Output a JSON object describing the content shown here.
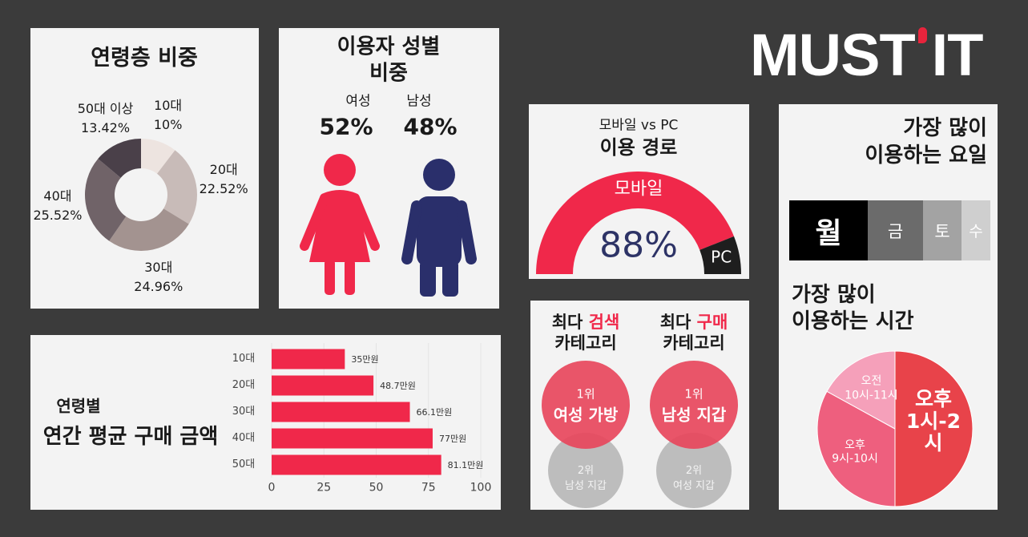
{
  "logo": {
    "left": "MUST",
    "right": "IT"
  },
  "gender": {
    "title": "이용자 성별 비중",
    "groups": [
      {
        "label": "여성",
        "share": "52%"
      },
      {
        "label": "남성",
        "share": "48%"
      }
    ]
  },
  "top_categories": {
    "columns": [
      {
        "heading": {
          "prefix": "최다",
          "keyword": "검색",
          "suffix": "카테고리"
        },
        "first": {
          "rank": "1위",
          "item": "여성 가방"
        },
        "second": {
          "rank": "2위",
          "item": "남성 지갑"
        }
      },
      {
        "heading": {
          "prefix": "최다",
          "keyword": "구매",
          "suffix": "카테고리"
        },
        "first": {
          "rank": "1위",
          "item": "남성 지갑"
        },
        "second": {
          "rank": "2위",
          "item": "여성 지갑"
        }
      }
    ]
  },
  "weekday": {
    "title": "가장 많이\n이용하는 요일",
    "days": [
      "월",
      "금",
      "토",
      "수"
    ]
  },
  "chart_data": [
    {
      "type": "donut",
      "title": "연령층 비중",
      "categories": [
        "10대",
        "20대",
        "30대",
        "40대",
        "50대 이상"
      ],
      "values": [
        10,
        22.52,
        24.96,
        25.52,
        13.42
      ],
      "value_labels": [
        "10%",
        "22.52%",
        "24.96%",
        "25.52%",
        "13.42%"
      ],
      "colors": [
        "#ede4e0",
        "#c8bbb8",
        "#a39390",
        "#706368",
        "#4a4049"
      ]
    },
    {
      "type": "gauge",
      "subtitle": "모바일 vs PC",
      "title": "이용 경로",
      "categories": [
        "모바일",
        "PC"
      ],
      "values": [
        88,
        12
      ],
      "value_labels": [
        "88%",
        null
      ],
      "colors": [
        "#f0284a",
        "#1e1e1e"
      ]
    },
    {
      "type": "bar",
      "orientation": "horizontal",
      "subtitle": "연령별",
      "title": "연간 평균 구매 금액",
      "categories": [
        "10대",
        "20대",
        "30대",
        "40대",
        "50대"
      ],
      "values": [
        35,
        48.7,
        66.1,
        77,
        81.1
      ],
      "value_labels": [
        "35만원",
        "48.7만원",
        "66.1만원",
        "77만원",
        "81.1만원"
      ],
      "color": "#f0284a",
      "xlim": [
        0,
        100
      ],
      "xticks": [
        0,
        25,
        50,
        75,
        100
      ],
      "grid": true
    },
    {
      "type": "pie",
      "title": "가장 많이\n이용하는 시간",
      "categories": [
        "오후\n1시-2시",
        "오후\n9시-10시",
        "오전\n10시-11시"
      ],
      "values": [
        50,
        33,
        17
      ],
      "colors": [
        "#e8434a",
        "#ee5f7e",
        "#f5a0ba"
      ]
    }
  ]
}
